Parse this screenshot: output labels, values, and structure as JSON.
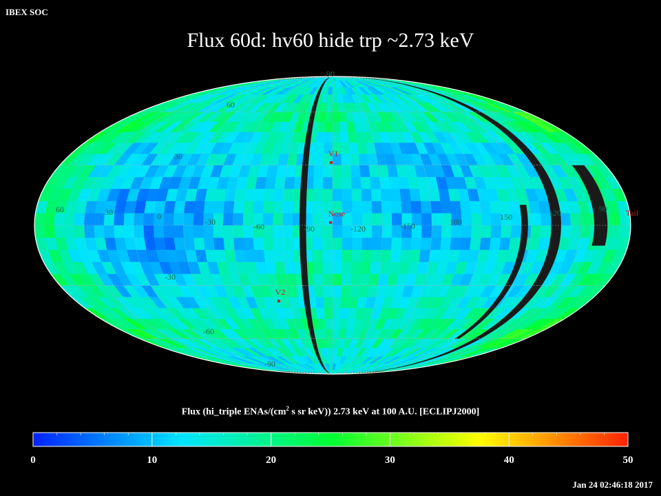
{
  "header": {
    "brand": "IBEX SOC",
    "title": "Flux   60d: hv60 hide trp ~2.73 keV"
  },
  "footer": {
    "timestamp": "Jan 24 02:46:18 2017"
  },
  "map": {
    "projection": "Mollweide (ecliptic J2000)",
    "lat_labels": [
      "90",
      "60",
      "30",
      "0",
      "-30",
      "-60",
      "-90"
    ],
    "lon_labels_nose": [
      "60",
      "30",
      "0",
      "-30",
      "-60",
      "-90",
      "-120",
      "-150",
      "180",
      "150",
      "120",
      "90"
    ],
    "lon_labels_left": [
      "60",
      "30",
      "0",
      "-30",
      "-60",
      "-90",
      "-120",
      "-150",
      "180",
      "150",
      "120",
      "90"
    ],
    "markers": [
      {
        "label": "V1",
        "color": "#cc1f1f"
      },
      {
        "label": "Nose",
        "color": "#cc1f1f"
      },
      {
        "label": "V2",
        "color": "#cc1f1f"
      },
      {
        "label": "Tail",
        "color": "#cc1f1f"
      }
    ]
  },
  "colorbar": {
    "label_pre": "Flux (hi_triple ENAs/(cm",
    "label_sup": "2",
    "label_post": " s sr keV))  2.73 keV at 100 A.U. [ECLIPJ2000]",
    "min": 0,
    "max": 50,
    "ticks": [
      "0",
      "10",
      "20",
      "30",
      "40",
      "50"
    ],
    "colors": [
      "#0022ff",
      "#00e5ff",
      "#00ff33",
      "#ffff00",
      "#ff2200"
    ]
  }
}
